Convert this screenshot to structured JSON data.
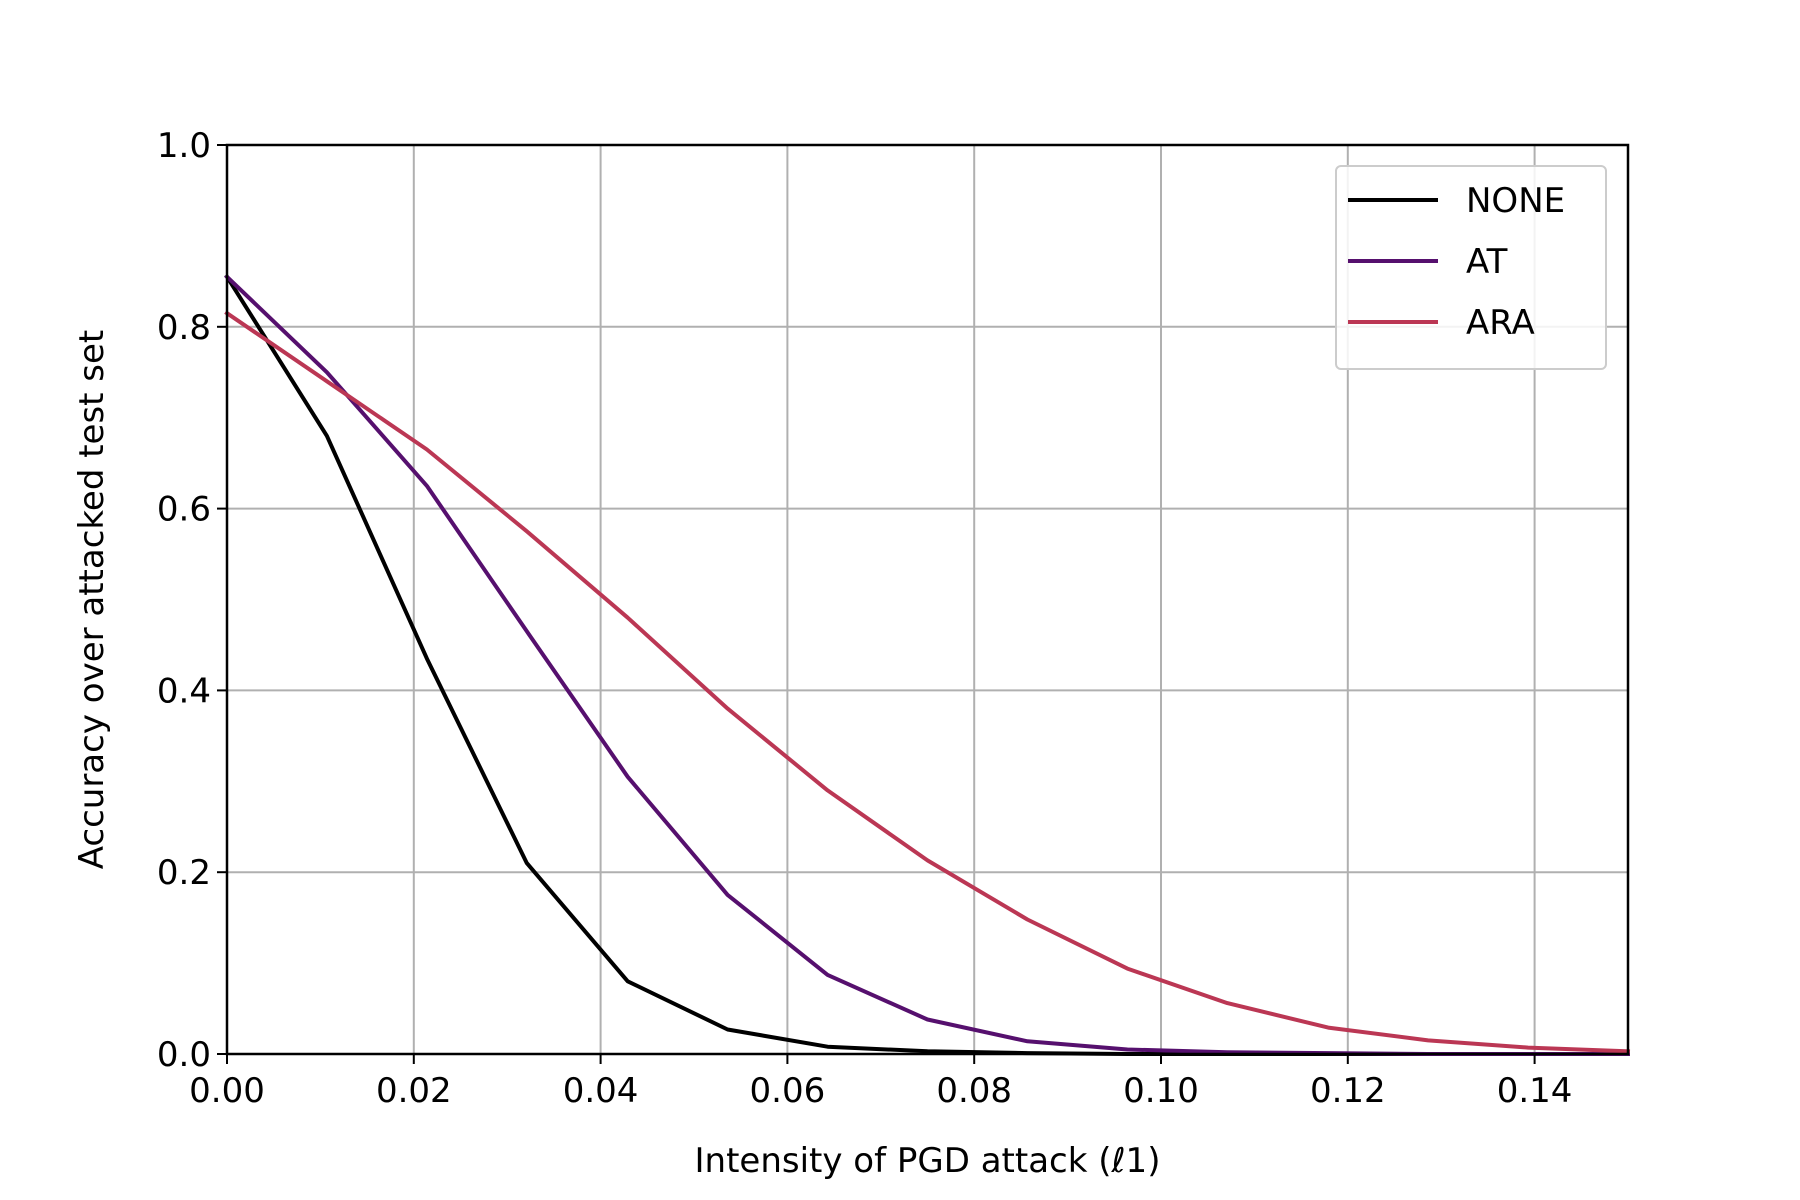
{
  "chart_data": {
    "type": "line",
    "xlabel": "Intensity of PGD attack (ℓ1)",
    "ylabel": "Accuracy over attacked test set",
    "xlim": [
      0.0,
      0.15
    ],
    "ylim": [
      0.0,
      1.0
    ],
    "grid": true,
    "legend_position": "top-right",
    "x_ticks": [
      "0.00",
      "0.02",
      "0.04",
      "0.06",
      "0.08",
      "0.10",
      "0.12",
      "0.14"
    ],
    "y_ticks": [
      "0.0",
      "0.2",
      "0.4",
      "0.6",
      "0.8",
      "1.0"
    ],
    "x_tick_values": [
      0.0,
      0.02,
      0.04,
      0.06,
      0.08,
      0.1,
      0.12,
      0.14
    ],
    "y_tick_values": [
      0.0,
      0.2,
      0.4,
      0.6,
      0.8,
      1.0
    ],
    "x": [
      0.0,
      0.0107,
      0.0214,
      0.0321,
      0.0429,
      0.0536,
      0.0643,
      0.075,
      0.0857,
      0.0964,
      0.1071,
      0.1179,
      0.1286,
      0.1393,
      0.15
    ],
    "series": [
      {
        "name": "NONE",
        "color": "#000000",
        "values": [
          0.855,
          0.68,
          0.435,
          0.21,
          0.08,
          0.027,
          0.008,
          0.003,
          0.001,
          0.0,
          0.0,
          0.0,
          0.0,
          0.0,
          0.0
        ]
      },
      {
        "name": "AT",
        "color": "#56106e",
        "values": [
          0.855,
          0.75,
          0.625,
          0.465,
          0.305,
          0.175,
          0.087,
          0.038,
          0.014,
          0.005,
          0.002,
          0.001,
          0.0,
          0.0,
          0.0
        ]
      },
      {
        "name": "ARA",
        "color": "#bb3754",
        "values": [
          0.815,
          0.74,
          0.665,
          0.575,
          0.48,
          0.38,
          0.29,
          0.213,
          0.148,
          0.094,
          0.056,
          0.029,
          0.015,
          0.007,
          0.003
        ]
      }
    ]
  }
}
